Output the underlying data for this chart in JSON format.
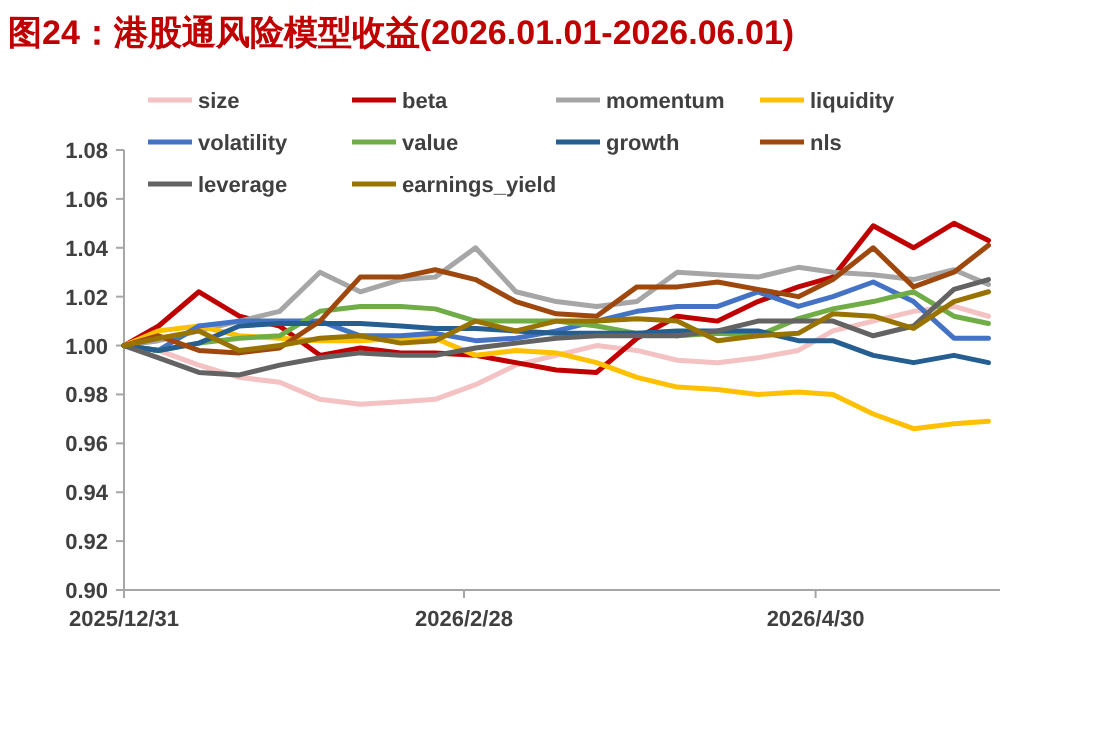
{
  "chart_data": {
    "type": "line",
    "title": "图24：港股通风险模型收益(2026.01.01-2026.06.01)",
    "x": [
      "2025-12-31",
      "2026-01-06",
      "2026-01-13",
      "2026-01-20",
      "2026-01-27",
      "2026-02-03",
      "2026-02-10",
      "2026-02-17",
      "2026-02-23",
      "2026-03-02",
      "2026-03-09",
      "2026-03-16",
      "2026-03-23",
      "2026-03-30",
      "2026-04-06",
      "2026-04-13",
      "2026-04-20",
      "2026-04-27",
      "2026-05-03",
      "2026-05-10",
      "2026-05-17",
      "2026-05-24",
      "2026-05-30"
    ],
    "xlim": [
      "2025-12-31",
      "2026-06-01"
    ],
    "xticks": [
      {
        "value": "2025-12-31",
        "label": "2025/12/31"
      },
      {
        "value": "2026-02-28",
        "label": "2026/2/28"
      },
      {
        "value": "2026-04-30",
        "label": "2026/4/30"
      }
    ],
    "ylim": [
      0.9,
      1.08
    ],
    "yticks": [
      {
        "value": 0.9,
        "label": "0.90"
      },
      {
        "value": 0.92,
        "label": "0.92"
      },
      {
        "value": 0.94,
        "label": "0.94"
      },
      {
        "value": 0.96,
        "label": "0.96"
      },
      {
        "value": 0.98,
        "label": "0.98"
      },
      {
        "value": 1.0,
        "label": "1.00"
      },
      {
        "value": 1.02,
        "label": "1.02"
      },
      {
        "value": 1.04,
        "label": "1.04"
      },
      {
        "value": 1.06,
        "label": "1.06"
      },
      {
        "value": 1.08,
        "label": "1.08"
      }
    ],
    "legend": "top",
    "series": [
      {
        "name": "size",
        "color": "#f4c2c2",
        "values": [
          1.0,
          0.998,
          0.992,
          0.987,
          0.985,
          0.978,
          0.976,
          0.977,
          0.978,
          0.984,
          0.992,
          0.996,
          1.0,
          0.998,
          0.994,
          0.993,
          0.995,
          0.998,
          1.006,
          1.01,
          1.014,
          1.016,
          1.012
        ]
      },
      {
        "name": "beta",
        "color": "#c00000",
        "values": [
          1.0,
          1.008,
          1.022,
          1.012,
          1.008,
          0.996,
          0.999,
          0.997,
          0.997,
          0.996,
          0.993,
          0.99,
          0.989,
          1.003,
          1.012,
          1.01,
          1.018,
          1.024,
          1.028,
          1.049,
          1.04,
          1.05,
          1.043
        ]
      },
      {
        "name": "momentum",
        "color": "#a6a6a6",
        "values": [
          1.0,
          1.002,
          1.006,
          1.01,
          1.014,
          1.03,
          1.022,
          1.027,
          1.028,
          1.04,
          1.022,
          1.018,
          1.016,
          1.018,
          1.03,
          1.029,
          1.028,
          1.032,
          1.03,
          1.029,
          1.027,
          1.031,
          1.025
        ]
      },
      {
        "name": "liquidity",
        "color": "#ffc000",
        "values": [
          1.0,
          1.006,
          1.008,
          1.004,
          1.003,
          1.002,
          1.002,
          1.003,
          1.003,
          0.996,
          0.998,
          0.997,
          0.993,
          0.987,
          0.983,
          0.982,
          0.98,
          0.981,
          0.98,
          0.972,
          0.966,
          0.968,
          0.969
        ]
      },
      {
        "name": "volatility",
        "color": "#4472c4",
        "values": [
          1.0,
          0.998,
          1.008,
          1.01,
          1.01,
          1.01,
          1.004,
          1.004,
          1.005,
          1.002,
          1.003,
          1.006,
          1.01,
          1.014,
          1.016,
          1.016,
          1.022,
          1.016,
          1.02,
          1.026,
          1.018,
          1.003,
          1.003
        ]
      },
      {
        "name": "value",
        "color": "#70ad47",
        "values": [
          1.0,
          0.998,
          1.001,
          1.003,
          1.004,
          1.014,
          1.016,
          1.016,
          1.015,
          1.01,
          1.01,
          1.01,
          1.008,
          1.005,
          1.004,
          1.005,
          1.004,
          1.011,
          1.015,
          1.018,
          1.022,
          1.012,
          1.009
        ]
      },
      {
        "name": "growth",
        "color": "#255e91",
        "values": [
          1.0,
          0.998,
          1.001,
          1.008,
          1.009,
          1.009,
          1.009,
          1.008,
          1.007,
          1.007,
          1.006,
          1.005,
          1.005,
          1.005,
          1.006,
          1.006,
          1.006,
          1.002,
          1.002,
          0.996,
          0.993,
          0.996,
          0.993
        ]
      },
      {
        "name": "nls",
        "color": "#9e480e",
        "values": [
          1.0,
          1.004,
          0.998,
          0.997,
          0.999,
          1.01,
          1.028,
          1.028,
          1.031,
          1.027,
          1.018,
          1.013,
          1.012,
          1.024,
          1.024,
          1.026,
          1.023,
          1.02,
          1.027,
          1.04,
          1.024,
          1.03,
          1.041
        ]
      },
      {
        "name": "leverage",
        "color": "#636363",
        "values": [
          1.0,
          0.995,
          0.989,
          0.988,
          0.992,
          0.995,
          0.997,
          0.996,
          0.996,
          0.999,
          1.001,
          1.003,
          1.004,
          1.004,
          1.004,
          1.006,
          1.01,
          1.01,
          1.01,
          1.004,
          1.008,
          1.023,
          1.027
        ]
      },
      {
        "name": "earnings_yield",
        "color": "#997300",
        "values": [
          1.0,
          1.003,
          1.006,
          0.998,
          1.0,
          1.003,
          1.004,
          1.001,
          1.002,
          1.01,
          1.006,
          1.01,
          1.01,
          1.011,
          1.01,
          1.002,
          1.004,
          1.005,
          1.013,
          1.012,
          1.007,
          1.018,
          1.022
        ]
      }
    ]
  }
}
